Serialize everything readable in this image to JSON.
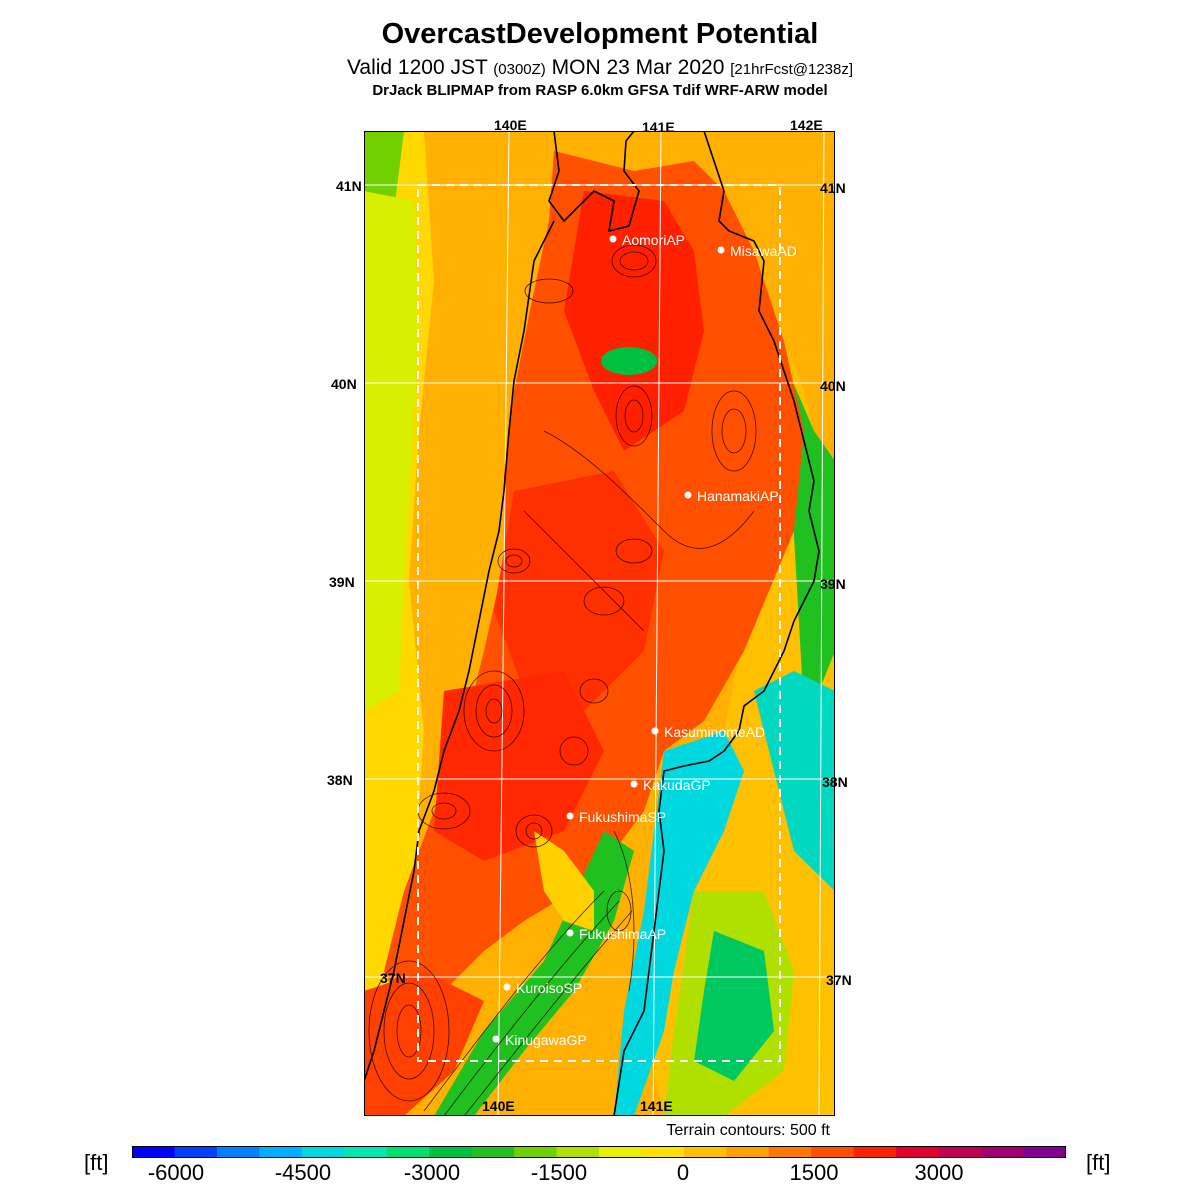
{
  "header": {
    "title": "OvercastDevelopment Potential",
    "valid_prefix": "Valid 1200 JST",
    "valid_utc": "(0300Z)",
    "valid_date": "MON 23 Mar 2020",
    "forecast_note": "[21hrFcst@1238z]",
    "credit": "DrJack BLIPMAP from RASP 6.0km GFSA Tdif WRF-ARW model"
  },
  "map": {
    "lat_labels": [
      "41N",
      "40N",
      "39N",
      "38N",
      "37N"
    ],
    "lon_labels_top": [
      "140E",
      "141E",
      "142E"
    ],
    "lon_labels_bottom": [
      "140E",
      "141E"
    ],
    "sites": [
      {
        "name": "AomoriAP"
      },
      {
        "name": "MisawaAD"
      },
      {
        "name": "HanamakiAP"
      },
      {
        "name": "KasuminomeAD"
      },
      {
        "name": "KakudaGP"
      },
      {
        "name": "FukushimaSP"
      },
      {
        "name": "FukushimaAP"
      },
      {
        "name": "KuroisoSP"
      },
      {
        "name": "KinugawaGP"
      }
    ],
    "terrain_note": "Terrain contours: 500 ft"
  },
  "colorbar": {
    "unit_left": "[ft]",
    "unit_right": "[ft]",
    "tick_labels": [
      "-6000",
      "-4500",
      "-3000",
      "-1500",
      "0",
      "1500",
      "3000"
    ],
    "colors": [
      "#0000ff",
      "#0040ff",
      "#0080ff",
      "#00b0ff",
      "#00d8e0",
      "#00e8b0",
      "#00e070",
      "#00c040",
      "#20c020",
      "#70d000",
      "#b0e000",
      "#e8f000",
      "#ffe000",
      "#ffc000",
      "#ffa000",
      "#ff7800",
      "#ff5000",
      "#ff2000",
      "#e00030",
      "#c00050",
      "#a00070",
      "#800090"
    ]
  }
}
